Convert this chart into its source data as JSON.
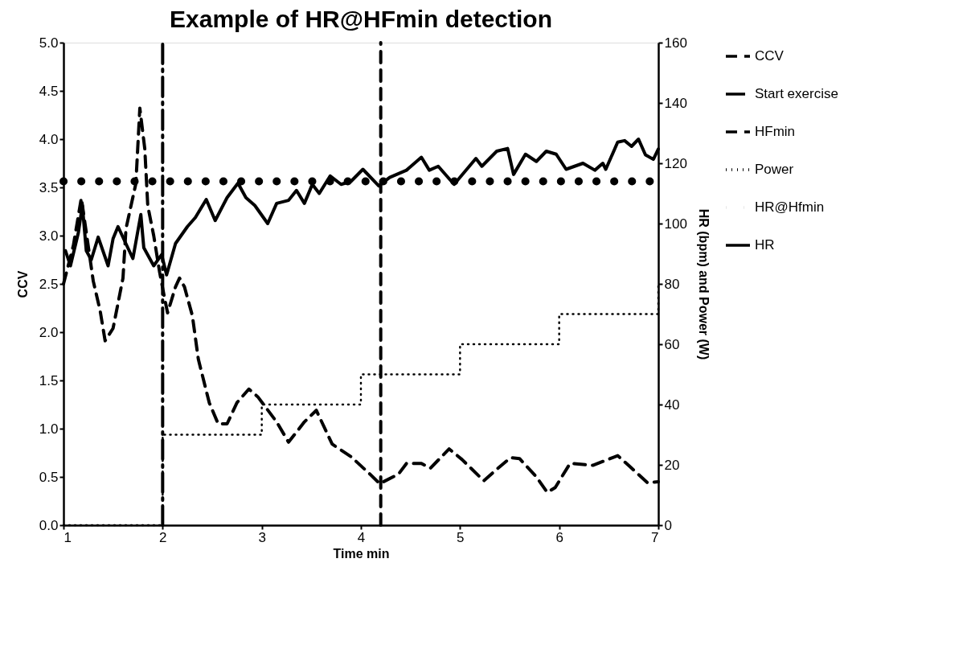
{
  "chart_data": {
    "type": "line",
    "title": "Example of HR@HFmin detection",
    "xlabel": "Time min",
    "ylabel": "CCV",
    "y2label": "HR (bpm) and Power (W)",
    "xlim": [
      1,
      7
    ],
    "xticks": [
      1,
      2,
      3,
      4,
      5,
      6,
      7
    ],
    "ylim": [
      0,
      5
    ],
    "yticks": [
      {
        "value": 0,
        "label": "0.0"
      },
      0.5,
      {
        "value": 1,
        "label": "1.0"
      },
      1.5,
      {
        "value": 2,
        "label": "2.0"
      },
      2.5,
      {
        "value": 3,
        "label": "3.0"
      },
      3.5,
      {
        "value": 4,
        "label": "4.0"
      },
      4.5,
      {
        "value": 5,
        "label": "5.0"
      }
    ],
    "y2lim": [
      0,
      160
    ],
    "y2ticks": [
      0,
      20,
      40,
      60,
      80,
      100,
      120,
      140,
      160
    ],
    "grid": false,
    "legend": "right",
    "series": [
      {
        "name": "CCV",
        "color": "#000000",
        "line_style": "dashed",
        "x": [
          1,
          1.1,
          1.18,
          1.3,
          1.37,
          1.42,
          1.5,
          1.6,
          1.63,
          1.73,
          1.77,
          1.82,
          1.85,
          1.91,
          1.97,
          2.02,
          2.05,
          2.13,
          2.17,
          2.22,
          2.3,
          2.36,
          2.47,
          2.56,
          2.65,
          2.75,
          2.87,
          2.96,
          3.15,
          3.27,
          3.43,
          3.55,
          3.71,
          3.9,
          4.09,
          4.19,
          4.38,
          4.46,
          4.61,
          4.7,
          4.89,
          5.02,
          5.24,
          5.36,
          5.51,
          5.6,
          5.77,
          5.88,
          5.96,
          6.11,
          6.34,
          6.59,
          6.71,
          6.89,
          7
        ],
        "values": [
          2.5,
          2.9,
          3.39,
          2.53,
          2.22,
          1.91,
          2.04,
          2.56,
          3.07,
          3.54,
          4.32,
          3.9,
          3.31,
          3.0,
          2.62,
          2.35,
          2.2,
          2.47,
          2.56,
          2.47,
          2.17,
          1.72,
          1.27,
          1.05,
          1.05,
          1.27,
          1.41,
          1.33,
          1.07,
          0.86,
          1.07,
          1.19,
          0.84,
          0.71,
          0.53,
          0.43,
          0.53,
          0.64,
          0.64,
          0.59,
          0.79,
          0.68,
          0.46,
          0.57,
          0.7,
          0.69,
          0.5,
          0.34,
          0.39,
          0.64,
          0.62,
          0.72,
          0.61,
          0.44,
          0.45
        ]
      },
      {
        "name": "Start exercise",
        "color": "#000000",
        "line_style": "dashdot",
        "x": [
          2,
          2
        ],
        "values": [
          0,
          5
        ]
      },
      {
        "name": "HFmin",
        "color": "#000000",
        "line_style": "dashed",
        "x": [
          4.2,
          4.2
        ],
        "values": [
          0,
          5
        ]
      },
      {
        "name": "Power",
        "color": "#000000",
        "type": "step",
        "line_style": "dotted",
        "axis": "y2",
        "x": [
          1,
          2,
          3,
          4,
          5,
          6,
          7
        ],
        "values": [
          0,
          30,
          40,
          50,
          60,
          70,
          80
        ]
      },
      {
        "name": "HR@Hfmin",
        "color": "#000000",
        "line_style": "dotted",
        "axis": "y2",
        "x": [
          1,
          7
        ],
        "values": [
          114,
          114
        ]
      },
      {
        "name": "HR",
        "color": "#000000",
        "line_style": "solid",
        "axis": "y2",
        "x": [
          1.02,
          1.07,
          1.15,
          1.19,
          1.23,
          1.28,
          1.35,
          1.45,
          1.5,
          1.55,
          1.64,
          1.7,
          1.78,
          1.81,
          1.91,
          1.99,
          2.04,
          2.13,
          2.25,
          2.33,
          2.44,
          2.53,
          2.65,
          2.76,
          2.84,
          2.93,
          3.06,
          3.15,
          3.27,
          3.35,
          3.43,
          3.51,
          3.58,
          3.69,
          3.8,
          3.9,
          4.02,
          4.18,
          4.29,
          4.46,
          4.61,
          4.69,
          4.78,
          4.94,
          5.16,
          5.22,
          5.37,
          5.48,
          5.54,
          5.66,
          5.77,
          5.87,
          5.97,
          6.07,
          6.24,
          6.36,
          6.44,
          6.47,
          6.59,
          6.66,
          6.73,
          6.8,
          6.87,
          6.95,
          7
        ],
        "values": [
          91,
          86,
          97,
          106,
          91,
          88,
          95.5,
          86,
          95,
          99,
          92.6,
          88.4,
          103,
          92,
          86,
          89.7,
          83,
          93.4,
          99,
          102,
          108,
          101,
          108.6,
          113.4,
          108.6,
          106,
          100,
          106.7,
          107.7,
          111,
          106.7,
          113,
          110,
          115.8,
          113,
          114,
          118,
          112.5,
          115.3,
          117.7,
          122,
          117.7,
          119,
          113,
          121.6,
          119,
          124,
          124.9,
          116.3,
          123,
          120.6,
          124,
          123,
          118,
          120,
          117.7,
          120,
          118,
          127,
          127.5,
          125.6,
          128,
          122.8,
          121.3,
          124.7
        ]
      }
    ]
  }
}
